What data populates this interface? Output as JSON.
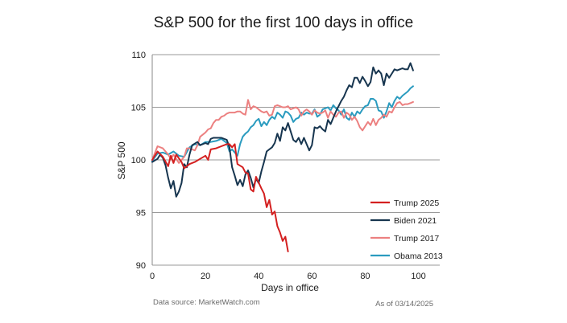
{
  "chart_data": {
    "type": "line",
    "title": "S&P 500 for the first 100 days in office",
    "xlabel": "Days in office",
    "ylabel": "S&P 500",
    "xlim": [
      0,
      108
    ],
    "ylim": [
      90,
      110
    ],
    "xticks": [
      0,
      20,
      40,
      60,
      80,
      100
    ],
    "yticks": [
      90,
      95,
      100,
      105,
      110
    ],
    "grid": "horizontal",
    "legend": "bottom-right",
    "series": [
      {
        "name": "Trump 2025",
        "color": "#d42020",
        "points": [
          [
            0,
            100
          ],
          [
            2,
            100.8
          ],
          [
            4,
            100.3
          ],
          [
            6,
            99.4
          ],
          [
            7,
            100.4
          ],
          [
            8,
            99.7
          ],
          [
            9,
            100.5
          ],
          [
            11,
            99.8
          ],
          [
            12,
            99.2
          ],
          [
            14,
            99.6
          ],
          [
            16,
            99.8
          ],
          [
            18,
            100.1
          ],
          [
            20,
            100.4
          ],
          [
            21,
            100.0
          ],
          [
            22,
            101.0
          ],
          [
            24,
            101.1
          ],
          [
            26,
            101.3
          ],
          [
            28,
            101.5
          ],
          [
            29,
            101.5
          ],
          [
            30,
            101.2
          ],
          [
            31,
            101.5
          ],
          [
            32,
            99.6
          ],
          [
            34,
            99.3
          ],
          [
            35,
            98.8
          ],
          [
            36,
            98.7
          ],
          [
            37,
            97.2
          ],
          [
            38,
            97.0
          ],
          [
            39,
            98.4
          ],
          [
            41,
            97.3
          ],
          [
            42,
            96.8
          ],
          [
            43,
            95.5
          ],
          [
            44,
            96.2
          ],
          [
            45,
            94.8
          ],
          [
            46,
            95.1
          ],
          [
            47,
            93.7
          ],
          [
            48,
            93.1
          ],
          [
            49,
            92.3
          ],
          [
            50,
            92.7
          ],
          [
            51,
            91.3
          ]
        ]
      },
      {
        "name": "Biden 2021",
        "color": "#17354f",
        "points": [
          [
            0,
            99.8
          ],
          [
            2,
            100.1
          ],
          [
            3,
            100.5
          ],
          [
            4,
            100.2
          ],
          [
            5,
            99.5
          ],
          [
            6,
            98.3
          ],
          [
            7,
            97.3
          ],
          [
            8,
            98.0
          ],
          [
            9,
            96.5
          ],
          [
            10,
            97.0
          ],
          [
            11,
            97.8
          ],
          [
            12,
            99.6
          ],
          [
            13,
            99.3
          ],
          [
            14,
            100.5
          ],
          [
            15,
            101.4
          ],
          [
            17,
            101.7
          ],
          [
            18,
            101.4
          ],
          [
            20,
            101.6
          ],
          [
            21,
            101.5
          ],
          [
            22,
            102.0
          ],
          [
            23,
            102.1
          ],
          [
            26,
            102.1
          ],
          [
            28,
            101.9
          ],
          [
            29,
            101.2
          ],
          [
            30,
            99.3
          ],
          [
            31,
            98.5
          ],
          [
            32,
            97.6
          ],
          [
            33,
            98.1
          ],
          [
            34,
            97.5
          ],
          [
            35,
            98.6
          ],
          [
            36,
            99.0
          ],
          [
            37,
            98.3
          ],
          [
            38,
            97.4
          ],
          [
            39,
            98.2
          ],
          [
            40,
            97.8
          ],
          [
            41,
            98.9
          ],
          [
            42,
            99.8
          ],
          [
            43,
            100.8
          ],
          [
            44,
            101.0
          ],
          [
            45,
            101.2
          ],
          [
            46,
            101.6
          ],
          [
            47,
            102.5
          ],
          [
            48,
            101.8
          ],
          [
            49,
            103.1
          ],
          [
            50,
            102.8
          ],
          [
            51,
            103.5
          ],
          [
            52,
            102.7
          ],
          [
            53,
            101.9
          ],
          [
            54,
            101.7
          ],
          [
            55,
            102.1
          ],
          [
            56,
            101.5
          ],
          [
            57,
            102.1
          ],
          [
            58,
            101.5
          ],
          [
            59,
            100.9
          ],
          [
            60,
            101.4
          ],
          [
            61,
            103.1
          ],
          [
            62,
            103.0
          ],
          [
            63,
            103.2
          ],
          [
            64,
            102.9
          ],
          [
            65,
            102.7
          ],
          [
            66,
            103.8
          ],
          [
            67,
            103.4
          ],
          [
            68,
            104.0
          ],
          [
            69,
            104.6
          ],
          [
            70,
            105.1
          ],
          [
            71,
            105.6
          ],
          [
            72,
            106.0
          ],
          [
            73,
            106.6
          ],
          [
            74,
            107.1
          ],
          [
            75,
            106.9
          ],
          [
            76,
            107.8
          ],
          [
            77,
            107.8
          ],
          [
            78,
            107.3
          ],
          [
            79,
            107.9
          ],
          [
            80,
            107.5
          ],
          [
            81,
            107.0
          ],
          [
            82,
            107.4
          ],
          [
            83,
            108.8
          ],
          [
            84,
            108.2
          ],
          [
            85,
            108.5
          ],
          [
            86,
            108.2
          ],
          [
            87,
            107.1
          ],
          [
            88,
            108.2
          ],
          [
            89,
            107.8
          ],
          [
            90,
            108.2
          ],
          [
            91,
            108.6
          ],
          [
            92,
            108.5
          ],
          [
            93,
            108.6
          ],
          [
            94,
            108.7
          ],
          [
            95,
            108.6
          ],
          [
            96,
            108.6
          ],
          [
            97,
            109.2
          ],
          [
            98,
            108.5
          ]
        ]
      },
      {
        "name": "Trump 2017",
        "color": "#ec8080",
        "points": [
          [
            0,
            100
          ],
          [
            2,
            101.3
          ],
          [
            4,
            101.1
          ],
          [
            6,
            100.5
          ],
          [
            7,
            100.1
          ],
          [
            8,
            100.5
          ],
          [
            9,
            100.1
          ],
          [
            10,
            99.7
          ],
          [
            11,
            100.0
          ],
          [
            12,
            100.3
          ],
          [
            13,
            101.1
          ],
          [
            14,
            101.1
          ],
          [
            15,
            101.0
          ],
          [
            16,
            100.9
          ],
          [
            17,
            101.4
          ],
          [
            18,
            102.2
          ],
          [
            20,
            102.6
          ],
          [
            21,
            102.9
          ],
          [
            22,
            103.0
          ],
          [
            23,
            103.5
          ],
          [
            24,
            103.8
          ],
          [
            25,
            103.8
          ],
          [
            26,
            104.1
          ],
          [
            27,
            104.2
          ],
          [
            28,
            104.4
          ],
          [
            29,
            104.5
          ],
          [
            31,
            104.5
          ],
          [
            32,
            104.6
          ],
          [
            33,
            104.6
          ],
          [
            34,
            104.4
          ],
          [
            35,
            104.3
          ],
          [
            36,
            105.7
          ],
          [
            37,
            104.8
          ],
          [
            38,
            105.1
          ],
          [
            39,
            105.0
          ],
          [
            40,
            104.8
          ],
          [
            41,
            104.6
          ],
          [
            42,
            104.5
          ],
          [
            43,
            104.6
          ],
          [
            44,
            104.2
          ],
          [
            45,
            104.3
          ],
          [
            46,
            105.1
          ],
          [
            47,
            105.2
          ],
          [
            48,
            105.1
          ],
          [
            49,
            105.0
          ],
          [
            50,
            105.0
          ],
          [
            51,
            105.1
          ],
          [
            52,
            104.8
          ],
          [
            53,
            104.9
          ],
          [
            54,
            105.0
          ],
          [
            55,
            104.8
          ],
          [
            56,
            104.2
          ],
          [
            57,
            104.6
          ],
          [
            58,
            104.8
          ],
          [
            59,
            104.6
          ],
          [
            60,
            104.3
          ],
          [
            61,
            104.7
          ],
          [
            62,
            104.5
          ],
          [
            63,
            104.4
          ],
          [
            64,
            104.5
          ],
          [
            65,
            104.7
          ],
          [
            66,
            104.0
          ],
          [
            67,
            104.6
          ],
          [
            68,
            104.3
          ],
          [
            69,
            104.1
          ],
          [
            70,
            104.5
          ],
          [
            71,
            104.6
          ],
          [
            72,
            104.0
          ],
          [
            73,
            104.5
          ],
          [
            74,
            104.3
          ],
          [
            75,
            103.8
          ],
          [
            76,
            104.1
          ],
          [
            77,
            103.7
          ],
          [
            78,
            103.1
          ],
          [
            79,
            102.8
          ],
          [
            80,
            103.2
          ],
          [
            81,
            103.6
          ],
          [
            82,
            103.3
          ],
          [
            83,
            103.9
          ],
          [
            84,
            103.3
          ],
          [
            85,
            103.8
          ],
          [
            86,
            104.0
          ],
          [
            87,
            104.3
          ],
          [
            88,
            104.1
          ],
          [
            89,
            104.6
          ],
          [
            90,
            104.5
          ],
          [
            91,
            105.0
          ],
          [
            92,
            105.4
          ],
          [
            93,
            105.5
          ],
          [
            94,
            105.2
          ],
          [
            95,
            105.3
          ],
          [
            96,
            105.3
          ],
          [
            97,
            105.4
          ],
          [
            98,
            105.5
          ]
        ]
      },
      {
        "name": "Obama 2013",
        "color": "#2a9bbf",
        "points": [
          [
            0,
            99.9
          ],
          [
            2,
            100.6
          ],
          [
            4,
            100.7
          ],
          [
            6,
            100.5
          ],
          [
            8,
            100.8
          ],
          [
            10,
            100.4
          ],
          [
            12,
            100.3
          ],
          [
            14,
            101.2
          ],
          [
            16,
            101.5
          ],
          [
            18,
            101.4
          ],
          [
            20,
            101.7
          ],
          [
            22,
            101.7
          ],
          [
            24,
            101.8
          ],
          [
            26,
            102.0
          ],
          [
            28,
            101.6
          ],
          [
            29,
            100.8
          ],
          [
            30,
            101.0
          ],
          [
            31,
            100.7
          ],
          [
            32,
            100.4
          ],
          [
            33,
            101.5
          ],
          [
            34,
            102.2
          ],
          [
            35,
            102.5
          ],
          [
            36,
            102.7
          ],
          [
            37,
            103.1
          ],
          [
            38,
            103.3
          ],
          [
            39,
            103.7
          ],
          [
            40,
            103.9
          ],
          [
            41,
            103.2
          ],
          [
            42,
            103.6
          ],
          [
            43,
            103.3
          ],
          [
            44,
            103.8
          ],
          [
            45,
            104.1
          ],
          [
            46,
            103.9
          ],
          [
            47,
            104.5
          ],
          [
            48,
            104.3
          ],
          [
            49,
            104.0
          ],
          [
            50,
            104.6
          ],
          [
            51,
            104.5
          ],
          [
            52,
            104.2
          ],
          [
            53,
            103.6
          ],
          [
            54,
            103.9
          ],
          [
            55,
            104.0
          ],
          [
            56,
            104.5
          ],
          [
            57,
            104.3
          ],
          [
            58,
            104.5
          ],
          [
            59,
            104.4
          ],
          [
            60,
            104.4
          ],
          [
            61,
            104.8
          ],
          [
            62,
            104.1
          ],
          [
            63,
            104.3
          ],
          [
            64,
            104.8
          ],
          [
            65,
            104.9
          ],
          [
            66,
            105.0
          ],
          [
            67,
            104.7
          ],
          [
            68,
            105.2
          ],
          [
            69,
            104.9
          ],
          [
            70,
            104.7
          ],
          [
            71,
            104.3
          ],
          [
            72,
            104.8
          ],
          [
            73,
            104.0
          ],
          [
            74,
            103.8
          ],
          [
            75,
            104.5
          ],
          [
            76,
            104.1
          ],
          [
            77,
            104.6
          ],
          [
            78,
            104.4
          ],
          [
            79,
            104.8
          ],
          [
            80,
            105.1
          ],
          [
            81,
            105.2
          ],
          [
            82,
            105.8
          ],
          [
            83,
            105.8
          ],
          [
            84,
            105.6
          ],
          [
            85,
            104.7
          ],
          [
            86,
            104.6
          ],
          [
            87,
            104.0
          ],
          [
            88,
            104.6
          ],
          [
            89,
            105.4
          ],
          [
            90,
            105.0
          ],
          [
            91,
            105.6
          ],
          [
            92,
            106.0
          ],
          [
            93,
            105.8
          ],
          [
            94,
            106.1
          ],
          [
            95,
            106.3
          ],
          [
            96,
            106.5
          ],
          [
            97,
            106.8
          ],
          [
            98,
            107.0
          ]
        ]
      }
    ]
  },
  "footer": {
    "source": "Data source: MarketWatch.com",
    "as_of": "As of 03/14/2025"
  }
}
